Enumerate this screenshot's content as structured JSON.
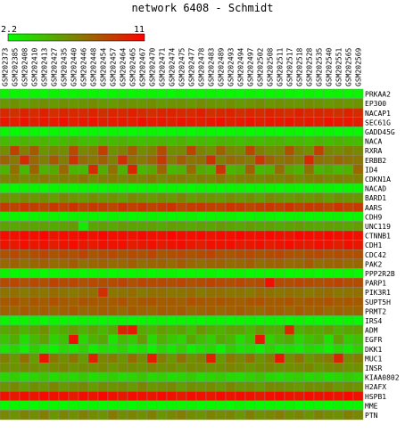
{
  "chart_data": {
    "type": "heatmap",
    "title": "network 6408 - Schmidt",
    "color_scale": {
      "min": 2.2,
      "max": 11,
      "min_label": "2.2",
      "max_label": "11",
      "low_color": "#00ff00",
      "mid_color": "#808000",
      "high_color": "#ff0000"
    },
    "columns": [
      "GSM202373",
      "GSM202385",
      "GSM202408",
      "GSM202410",
      "GSM202413",
      "GSM202427",
      "GSM202435",
      "GSM202440",
      "GSM202446",
      "GSM202448",
      "GSM202454",
      "GSM202457",
      "GSM202464",
      "GSM202465",
      "GSM202467",
      "GSM202470",
      "GSM202471",
      "GSM202474",
      "GSM202475",
      "GSM202477",
      "GSM202478",
      "GSM202483",
      "GSM202489",
      "GSM202493",
      "GSM202494",
      "GSM202497",
      "GSM202502",
      "GSM202508",
      "GSM202511",
      "GSM202517",
      "GSM202518",
      "GSM202528",
      "GSM202535",
      "GSM202540",
      "GSM202551",
      "GSM202565",
      "GSM202569"
    ],
    "rows": [
      "PRKAA2",
      "EP300",
      "NACAP1",
      "SEC61G",
      "GADD45G",
      "NACA",
      "RXRA",
      "ERBB2",
      "ID4",
      "CDKN1A",
      "NACAD",
      "BARD1",
      "AARS",
      "CDH9",
      "UNC119",
      "CTNNB1",
      "CDH1",
      "CDC42",
      "PAK2",
      "PPP2R2B",
      "PARP1",
      "PIK3R1",
      "SUPT5H",
      "PRMT2",
      "IRS4",
      "ADM",
      "EGFR",
      "DKK1",
      "MUC1",
      "INSR",
      "KIAA0802",
      "H2AFX",
      "HSPB1",
      "MME",
      "PTN"
    ],
    "values": [
      [
        2.6,
        2.5,
        2.5,
        2.6,
        2.4,
        2.6,
        2.5,
        2.5,
        2.6,
        2.5,
        2.4,
        2.5,
        2.6,
        2.5,
        2.5,
        2.6,
        2.5,
        2.4,
        2.6,
        2.5,
        2.5,
        2.6,
        2.5,
        2.5,
        2.4,
        2.6,
        2.5,
        2.5,
        2.6,
        2.5,
        2.4,
        2.6,
        2.5,
        2.5,
        2.6,
        2.5,
        2.5
      ],
      [
        5.8,
        6.0,
        5.6,
        5.9,
        6.1,
        5.7,
        6.0,
        5.8,
        5.9,
        6.2,
        5.8,
        5.7,
        6.0,
        5.9,
        5.8,
        6.1,
        5.7,
        5.9,
        6.0,
        5.8,
        6.2,
        5.9,
        5.8,
        6.0,
        5.7,
        5.9,
        6.1,
        5.8,
        6.0,
        5.9,
        5.8,
        6.1,
        5.9,
        5.7,
        6.0,
        5.8,
        5.9
      ],
      [
        9.6,
        9.3,
        9.8,
        9.5,
        9.9,
        9.4,
        9.7,
        9.6,
        9.5,
        9.8,
        9.3,
        9.7,
        9.6,
        9.9,
        9.5,
        9.4,
        9.7,
        9.8,
        9.6,
        9.5,
        9.9,
        9.3,
        9.6,
        9.8,
        9.4,
        9.7,
        9.5,
        9.8,
        9.6,
        9.4,
        9.9,
        9.5,
        9.7,
        9.6,
        9.3,
        9.8,
        9.5
      ],
      [
        10.2,
        10.0,
        10.3,
        9.9,
        10.2,
        10.1,
        10.4,
        10.0,
        10.2,
        10.3,
        9.9,
        10.1,
        10.2,
        10.0,
        10.4,
        10.1,
        10.2,
        9.9,
        10.3,
        10.1,
        10.0,
        10.2,
        10.4,
        9.9,
        10.1,
        10.3,
        10.0,
        10.2,
        10.1,
        10.3,
        9.9,
        10.2,
        10.0,
        10.4,
        10.1,
        10.2,
        10.0
      ],
      [
        2.4,
        2.3,
        2.5,
        2.4,
        2.3,
        2.4,
        2.5,
        2.3,
        2.4,
        2.4,
        2.3,
        2.5,
        2.4,
        2.3,
        2.4,
        2.5,
        2.3,
        2.4,
        2.4,
        2.3,
        2.5,
        2.4,
        2.3,
        2.4,
        2.5,
        2.3,
        2.4,
        2.4,
        2.3,
        2.5,
        2.4,
        2.3,
        2.4,
        2.5,
        2.3,
        2.4,
        2.4
      ],
      [
        4.6,
        4.4,
        4.8,
        4.5,
        4.7,
        4.3,
        4.6,
        4.9,
        4.5,
        4.4,
        4.7,
        4.6,
        4.8,
        4.5,
        4.4,
        4.6,
        4.7,
        4.5,
        4.9,
        4.4,
        4.6,
        4.5,
        4.8,
        4.7,
        4.4,
        4.6,
        4.5,
        4.7,
        4.8,
        4.5,
        4.6,
        4.4,
        4.7,
        4.5,
        4.8,
        4.6,
        4.5
      ],
      [
        6.2,
        8.8,
        6.6,
        7.9,
        5.9,
        6.4,
        6.1,
        8.5,
        6.3,
        6.7,
        8.9,
        6.0,
        6.5,
        7.8,
        6.2,
        6.6,
        8.4,
        6.1,
        6.3,
        8.7,
        6.5,
        6.0,
        7.7,
        6.4,
        6.2,
        8.6,
        6.6,
        6.1,
        6.3,
        8.2,
        6.5,
        6.0,
        8.8,
        6.4,
        6.2,
        6.6,
        6.3
      ],
      [
        7.6,
        6.8,
        9.5,
        7.4,
        6.6,
        7.9,
        6.7,
        9.2,
        7.3,
        6.9,
        7.7,
        6.5,
        9.4,
        7.2,
        6.8,
        7.5,
        9.0,
        6.7,
        7.8,
        6.9,
        7.1,
        9.3,
        6.6,
        7.4,
        7.0,
        6.8,
        9.1,
        7.6,
        6.9,
        7.3,
        6.7,
        9.6,
        7.2,
        6.8,
        7.5,
        7.0,
        6.9
      ],
      [
        4.8,
        7.2,
        4.6,
        7.6,
        4.9,
        5.1,
        7.4,
        4.7,
        4.6,
        9.5,
        5.0,
        7.1,
        4.8,
        9.7,
        4.7,
        5.2,
        7.5,
        4.6,
        4.9,
        7.3,
        5.1,
        4.8,
        9.2,
        4.7,
        5.0,
        7.6,
        4.6,
        4.9,
        7.2,
        5.3,
        4.8,
        7.0,
        4.7,
        5.1,
        4.6,
        4.9,
        7.4
      ],
      [
        6.4,
        6.7,
        6.2,
        6.5,
        6.8,
        6.3,
        6.6,
        6.4,
        6.9,
        6.2,
        6.5,
        6.7,
        6.3,
        6.6,
        6.4,
        6.8,
        6.2,
        6.5,
        6.7,
        6.3,
        6.6,
        6.4,
        6.9,
        6.2,
        6.5,
        6.7,
        6.3,
        6.6,
        6.4,
        6.8,
        6.2,
        6.5,
        6.7,
        6.3,
        6.6,
        6.4,
        6.5
      ],
      [
        2.5,
        2.4,
        2.6,
        2.5,
        2.4,
        2.5,
        2.6,
        2.4,
        2.5,
        2.5,
        2.4,
        2.6,
        2.5,
        2.4,
        2.5,
        2.6,
        2.4,
        2.5,
        2.5,
        2.4,
        2.6,
        2.5,
        2.4,
        2.5,
        2.6,
        2.4,
        2.5,
        2.5,
        2.4,
        2.6,
        2.5,
        2.4,
        2.5,
        2.6,
        2.4,
        2.5,
        2.5
      ],
      [
        6.0,
        5.7,
        6.3,
        5.8,
        6.1,
        5.6,
        6.4,
        5.9,
        5.7,
        6.2,
        5.8,
        6.0,
        5.6,
        6.3,
        5.9,
        5.7,
        6.1,
        5.8,
        6.4,
        5.6,
        6.0,
        5.9,
        5.7,
        6.2,
        5.8,
        6.1,
        5.6,
        6.3,
        5.9,
        5.7,
        6.0,
        5.8,
        6.2,
        5.6,
        6.1,
        5.9,
        5.8
      ],
      [
        9.0,
        8.7,
        9.2,
        8.9,
        8.6,
        9.1,
        8.8,
        9.3,
        8.7,
        9.0,
        8.9,
        8.6,
        9.2,
        8.8,
        9.1,
        8.7,
        9.0,
        9.3,
        8.6,
        8.9,
        9.1,
        8.8,
        8.7,
        9.2,
        9.0,
        8.6,
        8.9,
        9.1,
        8.8,
        9.3,
        8.7,
        9.0,
        8.9,
        8.6,
        9.2,
        8.8,
        9.0
      ],
      [
        2.5,
        2.6,
        2.4,
        2.5,
        2.6,
        2.5,
        2.4,
        2.6,
        2.5,
        2.5,
        2.4,
        2.6,
        2.5,
        2.4,
        2.5,
        2.6,
        2.5,
        2.4,
        2.5,
        2.6,
        2.4,
        2.5,
        2.5,
        2.6,
        2.4,
        2.5,
        2.6,
        2.5,
        2.4,
        2.5,
        2.6,
        2.4,
        2.5,
        2.5,
        2.6,
        2.4,
        2.5
      ],
      [
        5.4,
        5.2,
        5.6,
        5.3,
        5.5,
        5.1,
        5.4,
        5.7,
        2.9,
        5.3,
        5.5,
        5.2,
        5.6,
        5.4,
        5.3,
        5.5,
        5.1,
        5.6,
        5.4,
        5.2,
        5.5,
        5.3,
        5.7,
        5.4,
        5.2,
        5.6,
        5.3,
        5.5,
        5.1,
        5.4,
        5.6,
        5.3,
        5.2,
        5.5,
        5.4,
        5.3,
        5.6
      ],
      [
        10.6,
        10.4,
        10.7,
        10.5,
        10.8,
        10.3,
        10.6,
        10.5,
        10.7,
        10.4,
        10.8,
        10.5,
        10.6,
        10.3,
        10.7,
        10.5,
        10.4,
        10.8,
        10.6,
        10.5,
        10.7,
        10.3,
        10.6,
        10.5,
        10.8,
        10.4,
        10.6,
        10.7,
        10.5,
        10.3,
        10.8,
        10.6,
        10.4,
        10.7,
        10.5,
        10.6,
        10.4
      ],
      [
        10.3,
        10.1,
        10.5,
        10.2,
        10.4,
        10.0,
        10.3,
        10.6,
        10.2,
        10.1,
        10.4,
        10.3,
        10.5,
        10.0,
        10.2,
        10.4,
        10.1,
        10.3,
        10.6,
        10.2,
        10.0,
        10.4,
        10.3,
        10.5,
        10.1,
        10.2,
        10.4,
        10.0,
        10.3,
        10.6,
        10.2,
        10.1,
        10.5,
        10.3,
        10.0,
        10.4,
        10.2
      ],
      [
        8.2,
        8.5,
        8.0,
        8.3,
        8.6,
        8.1,
        8.4,
        8.2,
        8.7,
        8.0,
        8.3,
        8.5,
        8.1,
        8.4,
        8.2,
        8.6,
        8.0,
        8.3,
        8.5,
        8.1,
        8.4,
        8.7,
        8.2,
        8.0,
        8.3,
        8.5,
        8.1,
        8.4,
        8.6,
        8.2,
        8.0,
        8.3,
        8.5,
        8.1,
        8.4,
        8.2,
        8.3
      ],
      [
        7.4,
        7.6,
        7.2,
        7.5,
        7.7,
        7.3,
        7.4,
        7.8,
        7.2,
        7.5,
        7.6,
        7.3,
        7.4,
        7.7,
        7.2,
        7.5,
        7.6,
        7.3,
        7.8,
        7.4,
        7.2,
        7.5,
        7.6,
        7.3,
        7.4,
        7.7,
        7.2,
        7.5,
        7.6,
        7.3,
        7.4,
        7.8,
        7.2,
        7.5,
        7.6,
        7.3,
        7.4
      ],
      [
        2.6,
        2.4,
        2.5,
        2.6,
        2.4,
        2.5,
        2.5,
        2.6,
        2.4,
        2.5,
        2.6,
        2.4,
        2.5,
        2.5,
        2.6,
        2.4,
        2.5,
        2.6,
        2.4,
        2.5,
        2.5,
        2.6,
        2.4,
        2.5,
        2.6,
        2.4,
        2.5,
        2.5,
        2.6,
        2.4,
        2.5,
        2.6,
        2.4,
        2.5,
        2.5,
        2.6,
        2.4
      ],
      [
        8.4,
        8.6,
        8.2,
        8.5,
        8.3,
        8.7,
        8.4,
        8.6,
        8.2,
        8.5,
        8.3,
        8.4,
        8.7,
        8.2,
        8.6,
        8.4,
        8.5,
        8.3,
        8.6,
        8.2,
        8.4,
        8.7,
        8.5,
        8.3,
        8.6,
        8.2,
        8.4,
        10.6,
        8.5,
        8.3,
        8.6,
        8.4,
        8.2,
        8.5,
        8.7,
        8.3,
        8.4
      ],
      [
        7.0,
        7.2,
        6.8,
        7.1,
        6.9,
        7.3,
        7.0,
        6.8,
        7.2,
        7.1,
        9.4,
        6.9,
        7.0,
        7.3,
        6.8,
        7.1,
        7.2,
        6.9,
        7.0,
        7.3,
        6.8,
        7.1,
        7.2,
        6.9,
        7.0,
        6.8,
        7.3,
        7.1,
        6.9,
        7.2,
        7.0,
        6.8,
        7.1,
        7.3,
        6.9,
        7.0,
        7.2
      ],
      [
        7.9,
        8.1,
        7.7,
        8.0,
        7.8,
        8.2,
        7.9,
        7.7,
        8.1,
        8.0,
        7.8,
        7.9,
        8.2,
        7.7,
        8.0,
        8.1,
        7.8,
        7.9,
        7.7,
        8.2,
        8.0,
        7.8,
        8.1,
        7.9,
        7.7,
        8.0,
        8.2,
        7.8,
        7.9,
        8.1,
        7.7,
        8.0,
        7.9,
        8.2,
        7.8,
        8.0,
        7.9
      ],
      [
        7.7,
        7.5,
        7.9,
        7.6,
        7.8,
        7.4,
        7.7,
        7.9,
        7.5,
        7.6,
        7.8,
        7.7,
        7.4,
        7.9,
        7.6,
        7.5,
        7.8,
        7.7,
        7.9,
        7.4,
        7.6,
        7.8,
        7.5,
        7.7,
        7.9,
        7.6,
        7.4,
        7.8,
        7.7,
        7.5,
        7.9,
        7.6,
        7.8,
        7.4,
        7.7,
        7.5,
        7.6
      ],
      [
        2.5,
        2.4,
        2.5,
        2.6,
        2.4,
        2.5,
        2.5,
        2.4,
        2.6,
        2.5,
        2.4,
        2.5,
        2.6,
        2.4,
        2.5,
        2.5,
        2.6,
        2.4,
        2.5,
        2.5,
        2.4,
        2.6,
        2.5,
        2.4,
        2.5,
        2.6,
        2.4,
        2.5,
        2.5,
        2.4,
        2.6,
        2.5,
        2.4,
        2.5,
        2.5,
        2.6,
        2.4
      ],
      [
        5.2,
        5.6,
        4.8,
        5.4,
        6.0,
        4.6,
        5.1,
        5.7,
        4.9,
        5.5,
        4.7,
        5.3,
        9.8,
        10.1,
        5.2,
        4.8,
        5.6,
        5.0,
        5.4,
        4.6,
        5.8,
        5.1,
        4.9,
        5.5,
        5.3,
        4.7,
        5.6,
        5.0,
        5.2,
        9.6,
        4.8,
        5.4,
        5.1,
        5.7,
        4.9,
        5.3,
        5.5
      ],
      [
        4.2,
        5.0,
        3.3,
        4.6,
        5.4,
        3.8,
        4.3,
        10.4,
        3.6,
        4.8,
        5.2,
        3.1,
        4.5,
        4.0,
        5.6,
        3.5,
        4.9,
        4.1,
        3.7,
        5.3,
        4.4,
        3.9,
        5.1,
        4.7,
        3.4,
        4.2,
        10.2,
        3.8,
        4.6,
        5.0,
        3.6,
        4.3,
        4.8,
        3.2,
        5.5,
        4.0,
        4.4
      ],
      [
        3.1,
        3.6,
        2.7,
        3.9,
        3.2,
        2.6,
        3.5,
        3.0,
        3.8,
        2.8,
        3.4,
        3.1,
        3.7,
        2.9,
        3.3,
        2.7,
        3.6,
        3.0,
        3.8,
        2.8,
        3.2,
        3.5,
        2.6,
        3.9,
        3.1,
        3.4,
        2.8,
        3.7,
        3.0,
        3.3,
        2.9,
        3.6,
        3.2,
        2.7,
        3.5,
        3.0,
        3.8
      ],
      [
        6.6,
        5.8,
        7.2,
        5.6,
        10.3,
        6.9,
        6.1,
        7.0,
        5.7,
        9.8,
        6.4,
        6.8,
        5.9,
        7.3,
        6.2,
        10.0,
        6.7,
        5.8,
        7.1,
        6.0,
        6.5,
        9.9,
        5.7,
        6.9,
        6.3,
        7.2,
        5.9,
        6.6,
        10.2,
        6.1,
        7.0,
        5.8,
        6.4,
        6.8,
        9.7,
        6.2,
        6.7
      ],
      [
        6.1,
        5.9,
        6.3,
        6.0,
        5.8,
        6.2,
        6.4,
        5.9,
        6.1,
        6.0,
        6.3,
        5.8,
        6.2,
        6.1,
        5.9,
        6.4,
        6.0,
        6.2,
        5.8,
        6.3,
        6.1,
        5.9,
        6.0,
        6.4,
        6.2,
        5.8,
        6.1,
        6.3,
        5.9,
        6.0,
        6.2,
        6.4,
        5.8,
        6.1,
        6.3,
        5.9,
        6.0
      ],
      [
        3.6,
        3.9,
        3.3,
        3.7,
        4.1,
        3.4,
        3.8,
        3.5,
        4.0,
        3.3,
        3.6,
        3.9,
        3.4,
        3.7,
        4.1,
        3.5,
        3.8,
        3.3,
        3.6,
        4.0,
        3.4,
        3.7,
        3.9,
        3.5,
        3.3,
        3.8,
        4.1,
        3.6,
        3.4,
        3.7,
        3.9,
        3.5,
        3.8,
        3.3,
        3.6,
        4.0,
        3.7
      ],
      [
        5.9,
        6.3,
        5.6,
        6.1,
        5.8,
        6.4,
        5.7,
        6.0,
        6.3,
        5.6,
        6.2,
        5.9,
        6.1,
        5.7,
        6.4,
        5.8,
        6.0,
        6.3,
        5.6,
        6.1,
        5.9,
        6.2,
        5.7,
        6.4,
        5.8,
        6.0,
        5.6,
        6.3,
        6.1,
        5.9,
        5.7,
        6.2,
        6.0,
        6.4,
        5.8,
        6.1,
        5.9
      ],
      [
        10.5,
        10.2,
        10.6,
        10.3,
        10.7,
        10.4,
        10.5,
        10.1,
        10.6,
        10.3,
        10.8,
        10.4,
        10.2,
        10.6,
        10.5,
        10.3,
        10.7,
        10.4,
        10.1,
        10.6,
        10.5,
        10.2,
        10.7,
        10.3,
        10.6,
        10.4,
        10.1,
        10.5,
        10.7,
        10.3,
        10.2,
        10.6,
        10.4,
        10.5,
        10.3,
        10.7,
        10.4
      ],
      [
        2.4,
        2.5,
        2.5,
        2.4,
        2.6,
        2.5,
        2.4,
        2.5,
        2.5,
        2.6,
        2.4,
        2.5,
        2.5,
        2.4,
        2.6,
        2.5,
        2.4,
        2.5,
        2.5,
        2.6,
        2.4,
        2.5,
        2.5,
        2.4,
        2.6,
        2.5,
        2.4,
        2.5,
        2.5,
        2.6,
        2.4,
        2.5,
        2.5,
        2.4,
        2.6,
        2.5,
        2.5
      ],
      [
        6.3,
        5.9,
        6.5,
        6.1,
        6.7,
        5.8,
        6.4,
        6.0,
        6.6,
        6.2,
        5.9,
        6.8,
        6.1,
        6.4,
        6.0,
        6.6,
        5.8,
        6.3,
        6.7,
        6.1,
        5.9,
        6.5,
        6.2,
        6.4,
        5.8,
        6.6,
        6.0,
        6.3,
        6.7,
        6.1,
        6.4,
        5.9,
        6.5,
        6.2,
        6.0,
        6.6,
        6.3
      ]
    ]
  }
}
